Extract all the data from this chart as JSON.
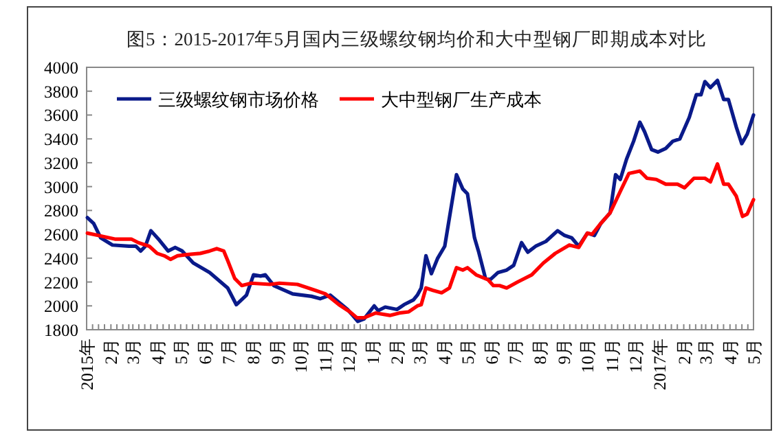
{
  "chart_data": {
    "type": "line",
    "title": "图5：2015-2017年5月国内三级螺纹钢均价和大中型钢厂即期成本对比",
    "xlim": [
      "2015-01-01",
      "2017-05-01"
    ],
    "xticks": [
      {
        "value": "2015-01-01",
        "label": "2015年"
      },
      {
        "value": "2015-02-01",
        "label": "2月"
      },
      {
        "value": "2015-03-01",
        "label": "3月"
      },
      {
        "value": "2015-04-01",
        "label": "4月"
      },
      {
        "value": "2015-05-01",
        "label": "5月"
      },
      {
        "value": "2015-06-01",
        "label": "6月"
      },
      {
        "value": "2015-07-01",
        "label": "7月"
      },
      {
        "value": "2015-08-01",
        "label": "8月"
      },
      {
        "value": "2015-09-01",
        "label": "9月"
      },
      {
        "value": "2015-10-01",
        "label": "10月"
      },
      {
        "value": "2015-11-01",
        "label": "11月"
      },
      {
        "value": "2015-12-01",
        "label": "12月"
      },
      {
        "value": "2016-01-01",
        "label": "1月"
      },
      {
        "value": "2016-02-01",
        "label": "2月"
      },
      {
        "value": "2016-03-01",
        "label": "3月"
      },
      {
        "value": "2016-04-01",
        "label": "4月"
      },
      {
        "value": "2016-05-01",
        "label": "5月"
      },
      {
        "value": "2016-06-01",
        "label": "6月"
      },
      {
        "value": "2016-07-01",
        "label": "7月"
      },
      {
        "value": "2016-08-01",
        "label": "8月"
      },
      {
        "value": "2016-09-01",
        "label": "9月"
      },
      {
        "value": "2016-10-01",
        "label": "10月"
      },
      {
        "value": "2016-11-01",
        "label": "11月"
      },
      {
        "value": "2016-12-01",
        "label": "12月"
      },
      {
        "value": "2017-01-01",
        "label": "2017年"
      },
      {
        "value": "2017-02-01",
        "label": "2月"
      },
      {
        "value": "2017-03-01",
        "label": "3月"
      },
      {
        "value": "2017-04-01",
        "label": "4月"
      },
      {
        "value": "2017-05-01",
        "label": "5月"
      }
    ],
    "ylim": [
      1800,
      4000
    ],
    "yticks": [
      1800,
      2000,
      2200,
      2400,
      2600,
      2800,
      3000,
      3200,
      3400,
      3600,
      3800,
      4000
    ],
    "legend": "top left",
    "grid": false,
    "marker": "none",
    "line_style": "solid",
    "series": [
      {
        "name": "三级螺纹钢市场价格",
        "color": "#0a1a8a",
        "x": [
          "2015-01-02",
          "2015-01-10",
          "2015-01-19",
          "2015-02-03",
          "2015-02-24",
          "2015-03-05",
          "2015-03-11",
          "2015-03-17",
          "2015-03-24",
          "2015-04-04",
          "2015-04-15",
          "2015-04-24",
          "2015-05-03",
          "2015-05-17",
          "2015-06-07",
          "2015-06-30",
          "2015-07-11",
          "2015-07-24",
          "2015-08-02",
          "2015-08-11",
          "2015-08-17",
          "2015-08-28",
          "2015-09-21",
          "2015-10-15",
          "2015-10-26",
          "2015-11-08",
          "2015-11-30",
          "2015-12-13",
          "2015-12-21",
          "2016-01-03",
          "2016-01-08",
          "2016-01-17",
          "2016-02-01",
          "2016-02-10",
          "2016-02-22",
          "2016-02-27",
          "2016-03-03",
          "2016-03-09",
          "2016-03-16",
          "2016-03-24",
          "2016-04-02",
          "2016-04-17",
          "2016-04-25",
          "2016-05-01",
          "2016-05-10",
          "2016-05-15",
          "2016-05-24",
          "2016-05-30",
          "2016-06-09",
          "2016-06-20",
          "2016-06-29",
          "2016-07-09",
          "2016-07-17",
          "2016-07-27",
          "2016-08-09",
          "2016-08-24",
          "2016-09-02",
          "2016-09-11",
          "2016-09-20",
          "2016-10-01",
          "2016-10-10",
          "2016-10-18",
          "2016-10-30",
          "2016-11-06",
          "2016-11-12",
          "2016-11-20",
          "2016-11-29",
          "2016-12-07",
          "2016-12-13",
          "2016-12-22",
          "2016-12-30",
          "2017-01-09",
          "2017-01-18",
          "2017-01-27",
          "2017-02-08",
          "2017-02-17",
          "2017-02-23",
          "2017-02-28",
          "2017-03-07",
          "2017-03-16",
          "2017-03-24",
          "2017-03-30",
          "2017-04-09",
          "2017-04-16",
          "2017-04-23",
          "2017-05-01"
        ],
        "values": [
          2740,
          2690,
          2570,
          2510,
          2500,
          2500,
          2460,
          2500,
          2630,
          2550,
          2460,
          2490,
          2460,
          2360,
          2280,
          2150,
          2010,
          2090,
          2260,
          2250,
          2260,
          2170,
          2100,
          2080,
          2060,
          2090,
          1970,
          1870,
          1890,
          2000,
          1960,
          1990,
          1970,
          2010,
          2050,
          2090,
          2150,
          2420,
          2270,
          2400,
          2500,
          3100,
          2980,
          2940,
          2570,
          2460,
          2230,
          2220,
          2280,
          2300,
          2340,
          2530,
          2450,
          2500,
          2540,
          2630,
          2590,
          2570,
          2500,
          2610,
          2590,
          2690,
          2780,
          3100,
          3060,
          3230,
          3380,
          3540,
          3460,
          3310,
          3290,
          3320,
          3380,
          3400,
          3580,
          3770,
          3770,
          3880,
          3830,
          3890,
          3730,
          3730,
          3500,
          3360,
          3440,
          3600
        ]
      },
      {
        "name": "大中型钢厂生产成本",
        "color": "#ff0000",
        "x": [
          "2015-01-02",
          "2015-01-16",
          "2015-02-06",
          "2015-02-27",
          "2015-03-08",
          "2015-03-22",
          "2015-04-01",
          "2015-04-10",
          "2015-04-18",
          "2015-04-27",
          "2015-05-09",
          "2015-05-26",
          "2015-06-07",
          "2015-06-16",
          "2015-06-25",
          "2015-06-30",
          "2015-07-09",
          "2015-07-18",
          "2015-07-30",
          "2015-08-23",
          "2015-09-04",
          "2015-09-27",
          "2015-10-20",
          "2015-11-02",
          "2015-11-19",
          "2015-12-03",
          "2015-12-12",
          "2015-12-21",
          "2016-01-05",
          "2016-01-23",
          "2016-02-04",
          "2016-02-16",
          "2016-02-27",
          "2016-03-03",
          "2016-03-09",
          "2016-03-18",
          "2016-03-29",
          "2016-04-08",
          "2016-04-17",
          "2016-04-25",
          "2016-05-01",
          "2016-05-12",
          "2016-05-27",
          "2016-06-03",
          "2016-06-11",
          "2016-06-20",
          "2016-07-04",
          "2016-07-22",
          "2016-08-06",
          "2016-08-21",
          "2016-09-08",
          "2016-09-20",
          "2016-10-01",
          "2016-10-07",
          "2016-10-18",
          "2016-10-30",
          "2016-11-12",
          "2016-11-23",
          "2016-12-07",
          "2016-12-16",
          "2016-12-28",
          "2017-01-09",
          "2017-01-24",
          "2017-02-02",
          "2017-02-14",
          "2017-02-28",
          "2017-03-07",
          "2017-03-16",
          "2017-03-24",
          "2017-03-30",
          "2017-04-09",
          "2017-04-17",
          "2017-04-23",
          "2017-05-01"
        ],
        "values": [
          2610,
          2590,
          2560,
          2560,
          2530,
          2500,
          2440,
          2420,
          2390,
          2420,
          2430,
          2440,
          2460,
          2480,
          2460,
          2380,
          2230,
          2170,
          2190,
          2180,
          2190,
          2180,
          2130,
          2100,
          2010,
          1950,
          1900,
          1900,
          1940,
          1920,
          1940,
          1950,
          2000,
          2010,
          2150,
          2130,
          2110,
          2150,
          2320,
          2300,
          2320,
          2260,
          2220,
          2170,
          2170,
          2150,
          2200,
          2260,
          2360,
          2440,
          2510,
          2490,
          2610,
          2600,
          2690,
          2780,
          2960,
          3110,
          3130,
          3070,
          3060,
          3020,
          3020,
          2990,
          3070,
          3070,
          3040,
          3190,
          3020,
          3020,
          2920,
          2750,
          2770,
          2890
        ]
      }
    ]
  }
}
